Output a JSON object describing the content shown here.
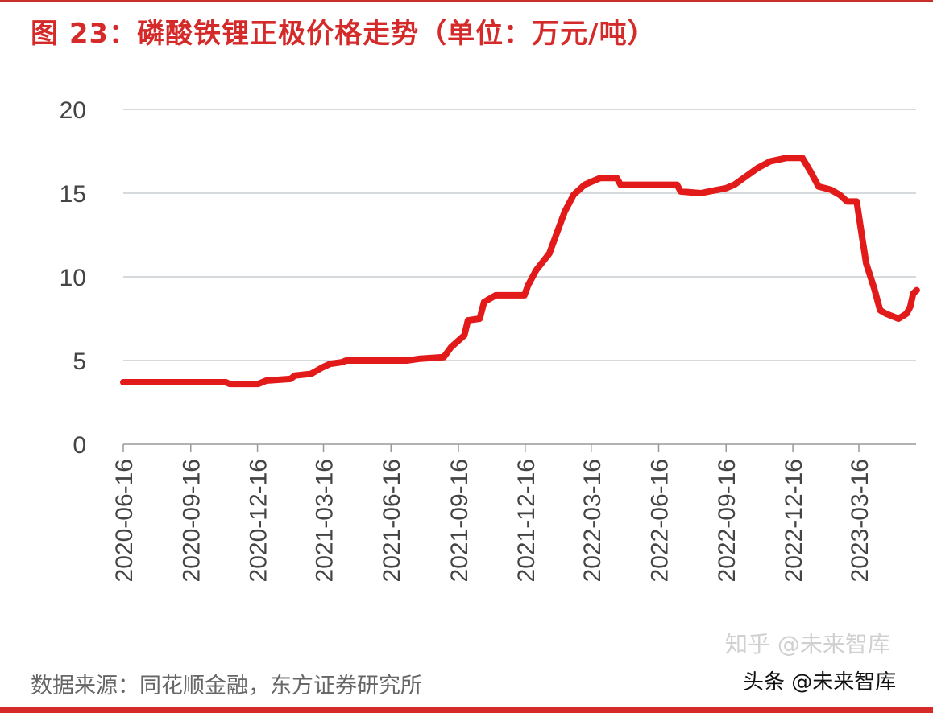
{
  "chart_data": {
    "type": "line",
    "title": "图 23：磷酸铁锂正极价格走势（单位：万元/吨）",
    "xlabel": "",
    "ylabel": "",
    "ylim": [
      0,
      20
    ],
    "yticks": [
      0,
      5,
      10,
      15,
      20
    ],
    "xticks": [
      "2020-06-16",
      "2020-09-16",
      "2020-12-16",
      "2021-03-16",
      "2021-06-16",
      "2021-09-16",
      "2021-12-16",
      "2022-03-16",
      "2022-06-16",
      "2022-09-16",
      "2022-12-16",
      "2023-03-16"
    ],
    "grid": true,
    "legend": "none",
    "line_color": "#e31a1a",
    "series": [
      {
        "x": [
          "2020-06-16",
          "2020-11-03",
          "2020-11-08",
          "2020-12-17",
          "2020-12-28",
          "2021-01-30",
          "2021-02-05",
          "2021-02-27",
          "2021-03-15",
          "2021-03-25",
          "2021-04-10",
          "2021-04-16",
          "2021-07-08",
          "2021-07-24",
          "2021-08-27",
          "2021-09-06",
          "2021-09-24",
          "2021-09-29",
          "2021-10-15",
          "2021-10-21",
          "2021-11-06",
          "2021-12-15",
          "2021-12-20",
          "2021-12-31",
          "2022-01-18",
          "2022-01-28",
          "2022-02-08",
          "2022-02-20",
          "2022-03-07",
          "2022-03-28",
          "2022-04-20",
          "2022-04-25",
          "2022-07-11",
          "2022-07-16",
          "2022-08-12",
          "2022-09-16",
          "2022-09-27",
          "2022-10-13",
          "2022-10-29",
          "2022-11-15",
          "2022-12-07",
          "2022-12-29",
          "2023-01-09",
          "2023-01-20",
          "2023-02-06",
          "2023-02-18",
          "2023-02-28",
          "2023-03-13",
          "2023-03-20",
          "2023-03-26",
          "2023-04-06",
          "2023-04-14",
          "2023-04-22",
          "2023-05-09",
          "2023-05-20",
          "2023-05-25",
          "2023-05-29",
          "2023-06-03"
        ],
        "values": [
          3.7,
          3.7,
          3.6,
          3.6,
          3.8,
          3.9,
          4.1,
          4.2,
          4.6,
          4.8,
          4.9,
          5.0,
          5.0,
          5.1,
          5.2,
          5.8,
          6.5,
          7.4,
          7.5,
          8.5,
          8.9,
          8.9,
          9.5,
          10.4,
          11.4,
          12.6,
          13.9,
          14.9,
          15.5,
          15.9,
          15.9,
          15.5,
          15.5,
          15.1,
          15.0,
          15.3,
          15.5,
          16.0,
          16.5,
          16.9,
          17.1,
          17.1,
          16.3,
          15.4,
          15.2,
          14.9,
          14.5,
          14.5,
          12.5,
          10.8,
          9.3,
          8.0,
          7.8,
          7.5,
          7.8,
          8.2,
          9.0,
          9.2
        ]
      }
    ]
  },
  "source": "数据来源：同花顺金融，东方证券研究所",
  "watermark_zhihu": "知乎 @未来智库",
  "watermark_toutiao": "头条 @未来智库"
}
